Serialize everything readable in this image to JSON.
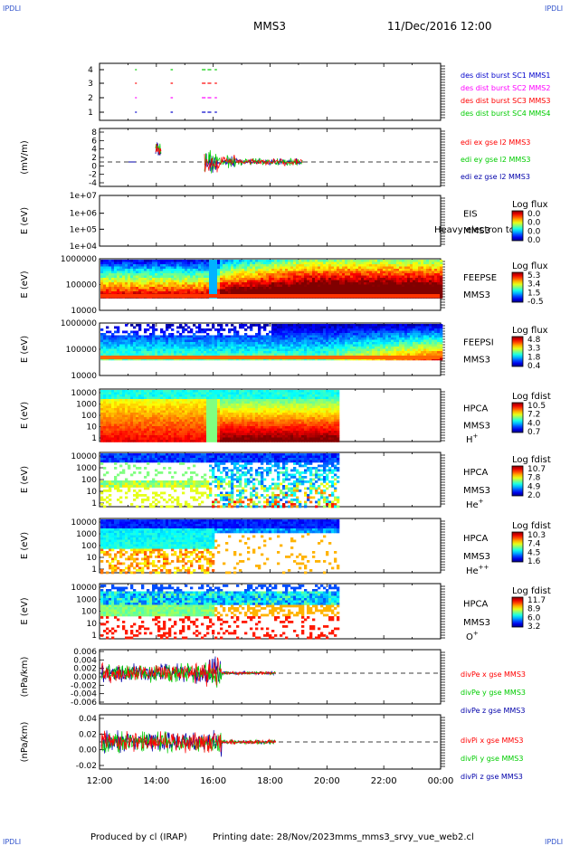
{
  "header": {
    "corner_label": "IPDLI",
    "spacecraft": "MMS3",
    "datetime": "11/Dec/2016 12:00"
  },
  "footer": {
    "produced_by": "Produced by cl (IRAP)",
    "printing_date": "Printing date: 28/Nov/2023",
    "filename": "mms_mms3_srvy_vue_web2.cl"
  },
  "colors": {
    "red": "#ff0000",
    "green": "#00cc00",
    "blue": "#0000cc",
    "magenta": "#ff00ff",
    "dark_blue": "#0000aa"
  },
  "chart_data": [
    {
      "type": "timeline",
      "id": "burst",
      "ylabel": "",
      "y_ticks": [
        "4",
        "3",
        "2",
        "1"
      ],
      "series": [
        {
          "name": "des dist burst SC1 MMS1",
          "color": "#0000cc",
          "y": 1,
          "segments": [
            [
              13.25,
              13.28
            ],
            [
              14.5,
              14.55
            ],
            [
              15.6,
              15.7
            ],
            [
              15.8,
              15.9
            ],
            [
              16.05,
              16.1
            ]
          ]
        },
        {
          "name": "des dist burst SC2 MMS2",
          "color": "#ff00ff",
          "y": 2,
          "segments": [
            [
              13.25,
              13.28
            ],
            [
              14.5,
              14.55
            ],
            [
              15.6,
              15.7
            ],
            [
              15.8,
              15.9
            ],
            [
              16.05,
              16.1
            ]
          ]
        },
        {
          "name": "des dist burst SC3 MMS3",
          "color": "#ff0000",
          "y": 3,
          "segments": [
            [
              13.25,
              13.28
            ],
            [
              14.5,
              14.55
            ],
            [
              15.6,
              15.7
            ],
            [
              15.8,
              15.9
            ],
            [
              16.05,
              16.1
            ]
          ]
        },
        {
          "name": "des dist burst SC4 MMS4",
          "color": "#00cc00",
          "y": 4,
          "segments": [
            [
              13.25,
              13.28
            ],
            [
              14.5,
              14.55
            ],
            [
              15.6,
              15.7
            ],
            [
              15.8,
              15.9
            ],
            [
              16.05,
              16.1
            ]
          ]
        }
      ]
    },
    {
      "type": "line",
      "id": "edi",
      "ylabel": "(mV/m)",
      "y_ticks": [
        "8",
        "6",
        "4",
        "2",
        "0",
        "-2",
        "-4"
      ],
      "ylim": [
        -5,
        8
      ],
      "series": [
        {
          "name": "edi ex gse l2 MMS3",
          "color": "#ff0000"
        },
        {
          "name": "edi ey gse l2 MMS3",
          "color": "#00cc00"
        },
        {
          "name": "edi ez gse l2 MMS3",
          "color": "#0000aa"
        }
      ]
    },
    {
      "type": "heatmap",
      "id": "eis",
      "ylabel": "E (eV)",
      "y_ticks": [
        "1e+07",
        "1e+06",
        "1e+05",
        "1e+04"
      ],
      "instrument": "EIS",
      "spacecraft": "MMS3",
      "overlay_text": "Heavy electron to",
      "colorbar_title": "Log flux",
      "colorbar_ticks": [
        "0.0",
        "0.0",
        "0.0",
        "0.0"
      ]
    },
    {
      "type": "heatmap",
      "id": "feepse",
      "ylabel": "E (eV)",
      "y_ticks": [
        "1000000",
        "100000",
        "10000"
      ],
      "instrument": "FEEPSE",
      "spacecraft": "MMS3",
      "colorbar_title": "Log flux",
      "colorbar_ticks": [
        "5.3",
        "3.4",
        "1.5",
        "-0.5"
      ]
    },
    {
      "type": "heatmap",
      "id": "feepsi",
      "ylabel": "E (eV)",
      "y_ticks": [
        "1000000",
        "100000",
        "10000"
      ],
      "instrument": "FEEPSI",
      "spacecraft": "MMS3",
      "colorbar_title": "Log flux",
      "colorbar_ticks": [
        "4.8",
        "3.3",
        "1.8",
        "0.4"
      ]
    },
    {
      "type": "heatmap",
      "id": "hpca_h",
      "ylabel": "E (eV)",
      "y_ticks": [
        "10000",
        "1000",
        "100",
        "10",
        "1"
      ],
      "instrument": "HPCA",
      "spacecraft": "MMS3",
      "species": "H",
      "species_charge": "+",
      "colorbar_title": "Log fdist",
      "colorbar_ticks": [
        "10.5",
        "7.2",
        "4.0",
        "0.7"
      ]
    },
    {
      "type": "heatmap",
      "id": "hpca_he1",
      "ylabel": "E (eV)",
      "y_ticks": [
        "10000",
        "1000",
        "100",
        "10",
        "1"
      ],
      "instrument": "HPCA",
      "spacecraft": "MMS3",
      "species": "He",
      "species_charge": "+",
      "colorbar_title": "Log fdist",
      "colorbar_ticks": [
        "10.7",
        "7.8",
        "4.9",
        "2.0"
      ]
    },
    {
      "type": "heatmap",
      "id": "hpca_he2",
      "ylabel": "E (eV)",
      "y_ticks": [
        "10000",
        "1000",
        "100",
        "10",
        "1"
      ],
      "instrument": "HPCA",
      "spacecraft": "MMS3",
      "species": "He",
      "species_charge": "++",
      "colorbar_title": "Log fdist",
      "colorbar_ticks": [
        "10.3",
        "7.4",
        "4.5",
        "1.6"
      ]
    },
    {
      "type": "heatmap",
      "id": "hpca_o",
      "ylabel": "E (eV)",
      "y_ticks": [
        "10000",
        "1000",
        "100",
        "10",
        "1"
      ],
      "instrument": "HPCA",
      "spacecraft": "MMS3",
      "species": "O",
      "species_charge": "+",
      "colorbar_title": "Log fdist",
      "colorbar_ticks": [
        "11.7",
        "8.9",
        "6.0",
        "3.2"
      ]
    },
    {
      "type": "line",
      "id": "divpe",
      "ylabel": "(nPa/km)",
      "y_ticks": [
        "0.006",
        "0.004",
        "0.002",
        "0.000",
        "-0.002",
        "-0.004",
        "-0.006"
      ],
      "ylim": [
        -0.007,
        0.007
      ],
      "series": [
        {
          "name": "divPe x gse MMS3",
          "color": "#ff0000"
        },
        {
          "name": "divPe y gse MMS3",
          "color": "#00cc00"
        },
        {
          "name": "divPe z gse MMS3",
          "color": "#0000aa"
        }
      ]
    },
    {
      "type": "line",
      "id": "divpi",
      "ylabel": "(nPa/km)",
      "y_ticks": [
        "0.04",
        "0.02",
        "0.00",
        "-0.02"
      ],
      "ylim": [
        -0.035,
        0.045
      ],
      "series": [
        {
          "name": "divPi x gse MMS3",
          "color": "#ff0000"
        },
        {
          "name": "divPi y gse MMS3",
          "color": "#00cc00"
        },
        {
          "name": "divPi z gse MMS3",
          "color": "#0000aa"
        }
      ]
    }
  ],
  "time_axis": {
    "start_hour": 12,
    "end_hour": 24,
    "ticks": [
      "12:00",
      "14:00",
      "16:00",
      "18:00",
      "20:00",
      "22:00",
      "00:00"
    ]
  }
}
